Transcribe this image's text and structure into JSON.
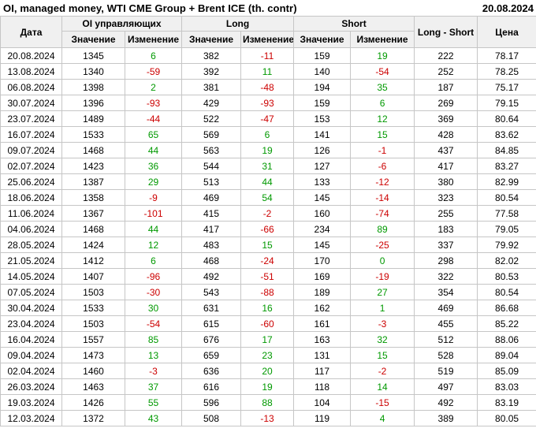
{
  "title": "OI, managed money, WTI CME Group + Brent ICE (th. contr)",
  "report_date": "20.08.2024",
  "colors": {
    "positive": "#009900",
    "negative": "#cc0000",
    "header_bg": "#f0f0f0",
    "border": "#c6c6c6"
  },
  "chart_data": {
    "type": "table",
    "title": "OI, managed money, WTI CME Group + Brent ICE (th. contr)",
    "header_groups": [
      {
        "label": "Дата",
        "rowspan": 2
      },
      {
        "label": "OI управляющих",
        "colspan": 2
      },
      {
        "label": "Long",
        "colspan": 2
      },
      {
        "label": "Short",
        "colspan": 2
      },
      {
        "label": "Long - Short",
        "rowspan": 2
      },
      {
        "label": "Цена",
        "rowspan": 2
      }
    ],
    "sub_headers": [
      "Значение",
      "Изменение",
      "Значение",
      "Изменение",
      "Значение",
      "Изменение"
    ],
    "columns": [
      "date",
      "oi_value",
      "oi_change",
      "long_value",
      "long_change",
      "short_value",
      "short_change",
      "long_short",
      "price"
    ],
    "change_columns": [
      2,
      4,
      6
    ],
    "rows": [
      [
        "20.08.2024",
        1345,
        6,
        382,
        -11,
        159,
        19,
        222,
        "78.17"
      ],
      [
        "13.08.2024",
        1340,
        -59,
        392,
        11,
        140,
        -54,
        252,
        "78.25"
      ],
      [
        "06.08.2024",
        1398,
        2,
        381,
        -48,
        194,
        35,
        187,
        "75.17"
      ],
      [
        "30.07.2024",
        1396,
        -93,
        429,
        -93,
        159,
        6,
        269,
        "79.15"
      ],
      [
        "23.07.2024",
        1489,
        -44,
        522,
        -47,
        153,
        12,
        369,
        "80.64"
      ],
      [
        "16.07.2024",
        1533,
        65,
        569,
        6,
        141,
        15,
        428,
        "83.62"
      ],
      [
        "09.07.2024",
        1468,
        44,
        563,
        19,
        126,
        -1,
        437,
        "84.85"
      ],
      [
        "02.07.2024",
        1423,
        36,
        544,
        31,
        127,
        -6,
        417,
        "83.27"
      ],
      [
        "25.06.2024",
        1387,
        29,
        513,
        44,
        133,
        -12,
        380,
        "82.99"
      ],
      [
        "18.06.2024",
        1358,
        -9,
        469,
        54,
        145,
        -14,
        323,
        "80.54"
      ],
      [
        "11.06.2024",
        1367,
        -101,
        415,
        -2,
        160,
        -74,
        255,
        "77.58"
      ],
      [
        "04.06.2024",
        1468,
        44,
        417,
        -66,
        234,
        89,
        183,
        "79.05"
      ],
      [
        "28.05.2024",
        1424,
        12,
        483,
        15,
        145,
        -25,
        337,
        "79.92"
      ],
      [
        "21.05.2024",
        1412,
        6,
        468,
        -24,
        170,
        0,
        298,
        "82.02"
      ],
      [
        "14.05.2024",
        1407,
        -96,
        492,
        -51,
        169,
        -19,
        322,
        "80.53"
      ],
      [
        "07.05.2024",
        1503,
        -30,
        543,
        -88,
        189,
        27,
        354,
        "80.54"
      ],
      [
        "30.04.2024",
        1533,
        30,
        631,
        16,
        162,
        1,
        469,
        "86.68"
      ],
      [
        "23.04.2024",
        1503,
        -54,
        615,
        -60,
        161,
        -3,
        455,
        "85.22"
      ],
      [
        "16.04.2024",
        1557,
        85,
        676,
        17,
        163,
        32,
        512,
        "88.06"
      ],
      [
        "09.04.2024",
        1473,
        13,
        659,
        23,
        131,
        15,
        528,
        "89.04"
      ],
      [
        "02.04.2024",
        1460,
        -3,
        636,
        20,
        117,
        -2,
        519,
        "85.09"
      ],
      [
        "26.03.2024",
        1463,
        37,
        616,
        19,
        118,
        14,
        497,
        "83.03"
      ],
      [
        "19.03.2024",
        1426,
        55,
        596,
        88,
        104,
        -15,
        492,
        "83.19"
      ],
      [
        "12.03.2024",
        1372,
        43,
        508,
        -13,
        119,
        4,
        389,
        "80.05"
      ]
    ]
  }
}
